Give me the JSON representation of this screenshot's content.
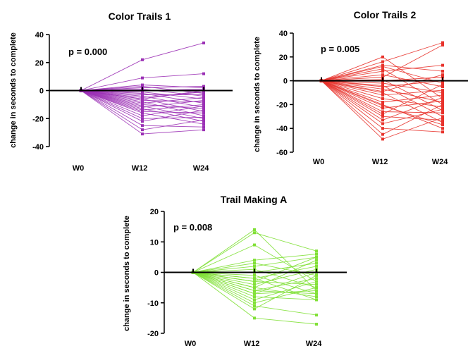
{
  "chart_data": [
    {
      "type": "line",
      "title": "Color Trails 1",
      "ylabel": "change in seconds to complete",
      "xlabel": "",
      "categories": [
        "W0",
        "W12",
        "W24"
      ],
      "ylim": [
        -40,
        40
      ],
      "yticks": [
        -40,
        -20,
        0,
        20,
        40
      ],
      "annotation": "p = 0.000",
      "color": "#9b30b5",
      "series": [
        {
          "values": [
            0,
            22,
            34
          ]
        },
        {
          "values": [
            0,
            9,
            12
          ]
        },
        {
          "values": [
            0,
            4,
            2
          ]
        },
        {
          "values": [
            0,
            3,
            -2
          ]
        },
        {
          "values": [
            0,
            2,
            3
          ]
        },
        {
          "values": [
            0,
            1,
            -4
          ]
        },
        {
          "values": [
            0,
            0,
            1
          ]
        },
        {
          "values": [
            0,
            -1,
            -6
          ]
        },
        {
          "values": [
            0,
            -2,
            -9
          ]
        },
        {
          "values": [
            0,
            -3,
            -3
          ]
        },
        {
          "values": [
            0,
            -4,
            -12
          ]
        },
        {
          "values": [
            0,
            -5,
            -1
          ]
        },
        {
          "values": [
            0,
            -6,
            -15
          ]
        },
        {
          "values": [
            0,
            -7,
            -8
          ]
        },
        {
          "values": [
            0,
            -8,
            -18
          ]
        },
        {
          "values": [
            0,
            -9,
            -5
          ]
        },
        {
          "values": [
            0,
            -10,
            -13
          ]
        },
        {
          "values": [
            0,
            -11,
            -20
          ]
        },
        {
          "values": [
            0,
            -12,
            -7
          ]
        },
        {
          "values": [
            0,
            -13,
            -22
          ]
        },
        {
          "values": [
            0,
            -14,
            -10
          ]
        },
        {
          "values": [
            0,
            -15,
            -16
          ]
        },
        {
          "values": [
            0,
            -16,
            -24
          ]
        },
        {
          "values": [
            0,
            -18,
            -11
          ]
        },
        {
          "values": [
            0,
            -20,
            -19
          ]
        },
        {
          "values": [
            0,
            -22,
            -14
          ]
        },
        {
          "values": [
            0,
            -25,
            -26
          ]
        },
        {
          "values": [
            0,
            -28,
            -21
          ]
        },
        {
          "values": [
            0,
            -31,
            -28
          ]
        },
        {
          "values": [
            0,
            -6,
            0
          ]
        }
      ]
    },
    {
      "type": "line",
      "title": "Color Trails 2",
      "ylabel": "change in seconds to complete",
      "xlabel": "",
      "categories": [
        "W0",
        "W12",
        "W24"
      ],
      "ylim": [
        -60,
        40
      ],
      "yticks": [
        -60,
        -40,
        -20,
        0,
        20,
        40
      ],
      "annotation": "p = 0.005",
      "color": "#e8332c",
      "series": [
        {
          "values": [
            0,
            20,
            -15
          ]
        },
        {
          "values": [
            0,
            16,
            32
          ]
        },
        {
          "values": [
            0,
            13,
            8
          ]
        },
        {
          "values": [
            0,
            10,
            -20
          ]
        },
        {
          "values": [
            0,
            8,
            13
          ]
        },
        {
          "values": [
            0,
            5,
            -5
          ]
        },
        {
          "values": [
            0,
            3,
            30
          ]
        },
        {
          "values": [
            0,
            1,
            -25
          ]
        },
        {
          "values": [
            0,
            0,
            3
          ]
        },
        {
          "values": [
            0,
            -2,
            -10
          ]
        },
        {
          "values": [
            0,
            -4,
            -30
          ]
        },
        {
          "values": [
            0,
            -5,
            0
          ]
        },
        {
          "values": [
            0,
            -7,
            -18
          ]
        },
        {
          "values": [
            0,
            -10,
            -35
          ]
        },
        {
          "values": [
            0,
            -12,
            -8
          ]
        },
        {
          "values": [
            0,
            -15,
            -22
          ]
        },
        {
          "values": [
            0,
            -18,
            -12
          ]
        },
        {
          "values": [
            0,
            -20,
            -40
          ]
        },
        {
          "values": [
            0,
            -23,
            -17
          ]
        },
        {
          "values": [
            0,
            -26,
            -27
          ]
        },
        {
          "values": [
            0,
            -28,
            -3
          ]
        },
        {
          "values": [
            0,
            -30,
            -33
          ]
        },
        {
          "values": [
            0,
            -33,
            -14
          ]
        },
        {
          "values": [
            0,
            -36,
            -24
          ]
        },
        {
          "values": [
            0,
            -40,
            -43
          ]
        },
        {
          "values": [
            0,
            -45,
            -20
          ]
        },
        {
          "values": [
            0,
            -49,
            -31
          ]
        },
        {
          "values": [
            0,
            -9,
            5
          ]
        },
        {
          "values": [
            0,
            -21,
            -37
          ]
        },
        {
          "values": [
            0,
            12,
            -2
          ]
        }
      ]
    },
    {
      "type": "line",
      "title": "Trail Making A",
      "ylabel": "change in seconds to complete",
      "xlabel": "",
      "categories": [
        "W0",
        "W12",
        "W24"
      ],
      "ylim": [
        -20,
        20
      ],
      "yticks": [
        -20,
        -10,
        0,
        10,
        20
      ],
      "annotation": "p = 0.008",
      "color": "#80e035",
      "series": [
        {
          "values": [
            0,
            14,
            -6
          ]
        },
        {
          "values": [
            0,
            13,
            7
          ]
        },
        {
          "values": [
            0,
            9,
            -3
          ]
        },
        {
          "values": [
            0,
            4,
            6
          ]
        },
        {
          "values": [
            0,
            3,
            -1
          ]
        },
        {
          "values": [
            0,
            2,
            5
          ]
        },
        {
          "values": [
            0,
            1,
            -5
          ]
        },
        {
          "values": [
            0,
            0,
            3
          ]
        },
        {
          "values": [
            0,
            -1,
            -7
          ]
        },
        {
          "values": [
            0,
            -2,
            2
          ]
        },
        {
          "values": [
            0,
            -3,
            -4
          ]
        },
        {
          "values": [
            0,
            -4,
            1
          ]
        },
        {
          "values": [
            0,
            -5,
            -8
          ]
        },
        {
          "values": [
            0,
            -5,
            4
          ]
        },
        {
          "values": [
            0,
            -6,
            -2
          ]
        },
        {
          "values": [
            0,
            -7,
            -6
          ]
        },
        {
          "values": [
            0,
            -7,
            0
          ]
        },
        {
          "values": [
            0,
            -8,
            -9
          ]
        },
        {
          "values": [
            0,
            -9,
            -3
          ]
        },
        {
          "values": [
            0,
            -10,
            -5
          ]
        },
        {
          "values": [
            0,
            -11,
            -14
          ]
        },
        {
          "values": [
            0,
            -12,
            -1
          ]
        },
        {
          "values": [
            0,
            -15,
            -17
          ]
        },
        {
          "values": [
            0,
            -6,
            -7
          ]
        },
        {
          "values": [
            0,
            -3,
            5
          ]
        },
        {
          "values": [
            0,
            -2,
            -9
          ]
        }
      ]
    }
  ]
}
